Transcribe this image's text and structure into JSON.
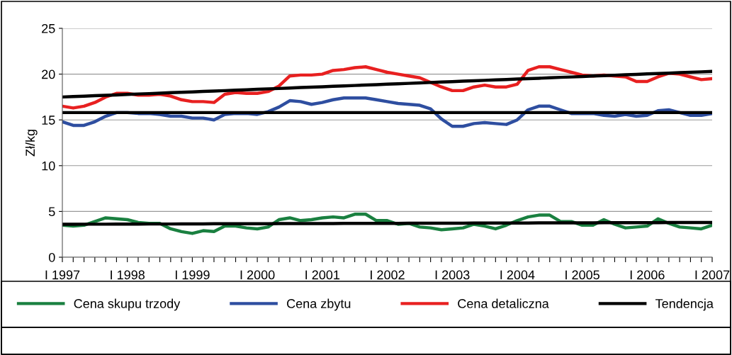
{
  "chart_data": {
    "type": "line",
    "ylabel": "Zł/kg",
    "ylim": [
      0,
      25
    ],
    "yticks": [
      0,
      5,
      10,
      15,
      20,
      25
    ],
    "categories": [
      "I 1997",
      null,
      null,
      null,
      null,
      null,
      "I 1998",
      null,
      null,
      null,
      null,
      null,
      "I 1999",
      null,
      null,
      null,
      null,
      null,
      "I 2000",
      null,
      null,
      null,
      null,
      null,
      "I 2001",
      null,
      null,
      null,
      null,
      null,
      "I 2002",
      null,
      null,
      null,
      null,
      null,
      "I 2003",
      null,
      null,
      null,
      null,
      null,
      "I 2004",
      null,
      null,
      null,
      null,
      null,
      "I 2005",
      null,
      null,
      null,
      null,
      null,
      "I 2006",
      null,
      null,
      null,
      null,
      null,
      "I 2007"
    ],
    "grid": "y",
    "legend": "bottom",
    "marker": "none",
    "line_style": "solid",
    "series": [
      {
        "name": "Cena skupu trzody",
        "color": "#1a8040",
        "values": [
          3.5,
          3.4,
          3.5,
          3.9,
          4.3,
          4.2,
          4.1,
          3.8,
          3.7,
          3.7,
          3.1,
          2.8,
          2.6,
          2.9,
          2.8,
          3.4,
          3.4,
          3.2,
          3.1,
          3.3,
          4.1,
          4.3,
          4.0,
          4.1,
          4.3,
          4.4,
          4.3,
          4.7,
          4.7,
          4.0,
          4.0,
          3.6,
          3.7,
          3.3,
          3.2,
          3.0,
          3.1,
          3.2,
          3.6,
          3.4,
          3.1,
          3.5,
          4.0,
          4.4,
          4.6,
          4.6,
          3.9,
          3.9,
          3.5,
          3.5,
          4.1,
          3.6,
          3.2,
          3.3,
          3.4,
          4.2,
          3.7,
          3.3,
          3.2,
          3.1,
          3.5
        ]
      },
      {
        "name": "Cena zbytu",
        "color": "#2e4ea0",
        "values": [
          14.8,
          14.4,
          14.4,
          14.8,
          15.4,
          15.8,
          15.8,
          15.7,
          15.7,
          15.6,
          15.4,
          15.4,
          15.2,
          15.2,
          15.0,
          15.6,
          15.7,
          15.7,
          15.6,
          15.9,
          16.4,
          17.1,
          17.0,
          16.7,
          16.9,
          17.2,
          17.4,
          17.4,
          17.4,
          17.2,
          17.0,
          16.8,
          16.7,
          16.6,
          16.2,
          15.1,
          14.3,
          14.3,
          14.6,
          14.7,
          14.6,
          14.5,
          15.0,
          16.1,
          16.5,
          16.5,
          16.1,
          15.7,
          15.7,
          15.7,
          15.5,
          15.4,
          15.6,
          15.4,
          15.5,
          16.0,
          16.1,
          15.8,
          15.5,
          15.5,
          15.7
        ]
      },
      {
        "name": "Cena detaliczna",
        "color": "#e82020",
        "values": [
          16.5,
          16.3,
          16.5,
          16.9,
          17.5,
          17.9,
          17.9,
          17.7,
          17.7,
          17.8,
          17.6,
          17.2,
          17.0,
          17.0,
          16.9,
          17.8,
          18.0,
          17.9,
          17.9,
          18.1,
          18.7,
          19.8,
          19.9,
          19.9,
          20.0,
          20.4,
          20.5,
          20.7,
          20.8,
          20.5,
          20.2,
          20.0,
          19.8,
          19.6,
          19.1,
          18.6,
          18.2,
          18.2,
          18.6,
          18.8,
          18.6,
          18.6,
          18.9,
          20.4,
          20.8,
          20.8,
          20.5,
          20.2,
          19.9,
          19.8,
          19.9,
          19.8,
          19.7,
          19.2,
          19.2,
          19.7,
          20.1,
          20.0,
          19.7,
          19.4,
          19.5
        ]
      },
      {
        "name": "Tendencja",
        "color": "#000000",
        "values": [
          17.5,
          17.55,
          17.59,
          17.64,
          17.69,
          17.73,
          17.78,
          17.83,
          17.87,
          17.92,
          17.97,
          18.01,
          18.06,
          18.11,
          18.15,
          18.2,
          18.25,
          18.29,
          18.34,
          18.39,
          18.43,
          18.48,
          18.53,
          18.57,
          18.62,
          18.67,
          18.71,
          18.76,
          18.81,
          18.85,
          18.9,
          18.95,
          18.99,
          19.04,
          19.09,
          19.13,
          19.18,
          19.23,
          19.27,
          19.32,
          19.37,
          19.41,
          19.46,
          19.51,
          19.55,
          19.6,
          19.65,
          19.69,
          19.74,
          19.79,
          19.83,
          19.88,
          19.93,
          19.97,
          20.02,
          20.07,
          20.11,
          20.16,
          20.21,
          20.25,
          20.3
        ]
      },
      {
        "color": "#000000",
        "values": [
          15.8,
          15.8,
          15.8,
          15.8,
          15.8,
          15.8,
          15.8,
          15.8,
          15.8,
          15.8,
          15.8,
          15.8,
          15.8,
          15.8,
          15.8,
          15.8,
          15.8,
          15.8,
          15.8,
          15.8,
          15.8,
          15.8,
          15.8,
          15.8,
          15.8,
          15.8,
          15.8,
          15.8,
          15.8,
          15.8,
          15.8,
          15.8,
          15.8,
          15.8,
          15.8,
          15.8,
          15.8,
          15.8,
          15.8,
          15.8,
          15.8,
          15.8,
          15.8,
          15.8,
          15.8,
          15.8,
          15.8,
          15.8,
          15.8,
          15.8,
          15.8,
          15.8,
          15.8,
          15.8,
          15.8,
          15.8,
          15.8,
          15.8,
          15.8,
          15.8,
          15.8
        ]
      },
      {
        "color": "#000000",
        "values": [
          3.6,
          3.6,
          3.61,
          3.61,
          3.61,
          3.62,
          3.62,
          3.62,
          3.63,
          3.63,
          3.63,
          3.64,
          3.64,
          3.64,
          3.65,
          3.65,
          3.65,
          3.66,
          3.66,
          3.66,
          3.67,
          3.67,
          3.67,
          3.68,
          3.68,
          3.68,
          3.69,
          3.69,
          3.69,
          3.7,
          3.7,
          3.7,
          3.71,
          3.71,
          3.71,
          3.72,
          3.72,
          3.72,
          3.73,
          3.73,
          3.73,
          3.74,
          3.74,
          3.74,
          3.75,
          3.75,
          3.75,
          3.76,
          3.76,
          3.76,
          3.77,
          3.77,
          3.77,
          3.78,
          3.78,
          3.78,
          3.79,
          3.79,
          3.79,
          3.8,
          3.8
        ]
      }
    ]
  }
}
